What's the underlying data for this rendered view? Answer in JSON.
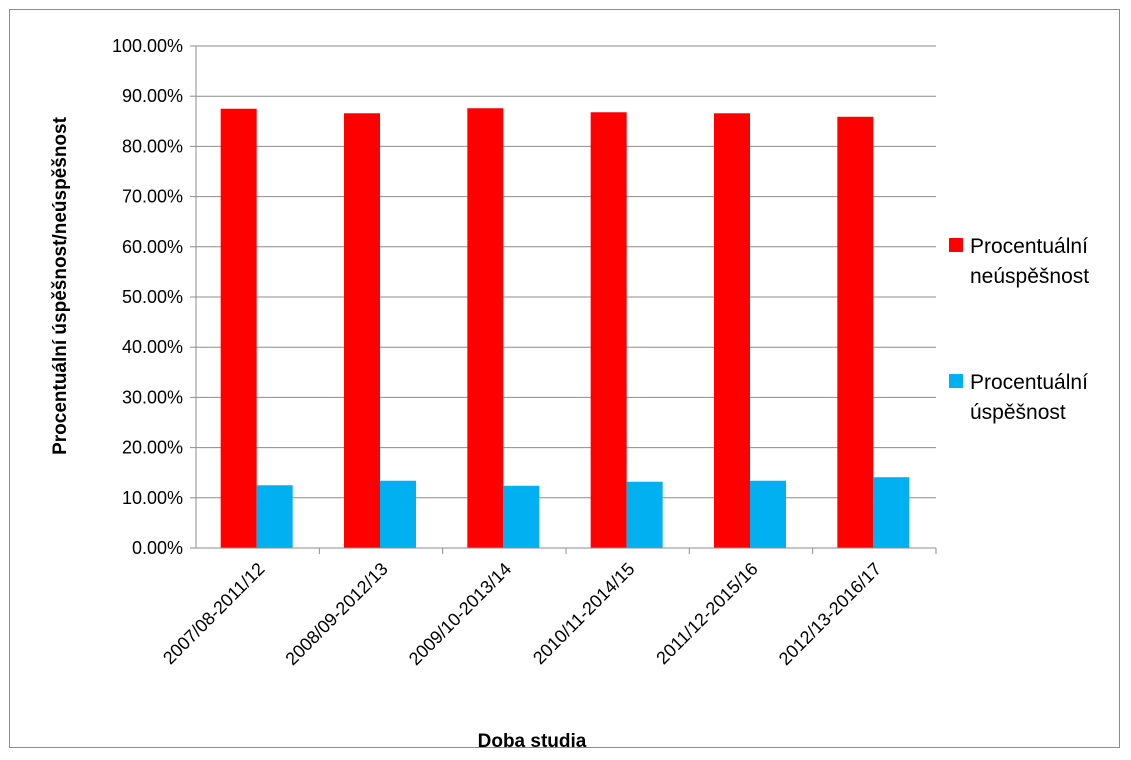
{
  "chart_data": {
    "type": "bar",
    "categories": [
      "2007/08-2011/12",
      "2008/09-2012/13",
      "2009/10-2013/14",
      "2010/11-2014/15",
      "2011/12-2015/16",
      "2012/13-2016/17"
    ],
    "series": [
      {
        "name": "Procentuální neúspěšnost",
        "name_lines": [
          "Procentuální",
          "neúspěšnost"
        ],
        "color": "#ff0000",
        "values": [
          0.875,
          0.866,
          0.876,
          0.868,
          0.866,
          0.859
        ]
      },
      {
        "name": "Procentuální úspěšnost",
        "name_lines": [
          "Procentuální",
          "úspěšnost"
        ],
        "color": "#00b0f0",
        "values": [
          0.125,
          0.134,
          0.124,
          0.132,
          0.134,
          0.141
        ]
      }
    ],
    "xlabel": "Doba studia",
    "ylabel": "Procentuální úspěšnost/neúspěšnost",
    "ylim": [
      0,
      1
    ],
    "ytick_step": 0.1,
    "ytick_format": "percent_2dp",
    "grid": true,
    "legend_position": "right"
  }
}
